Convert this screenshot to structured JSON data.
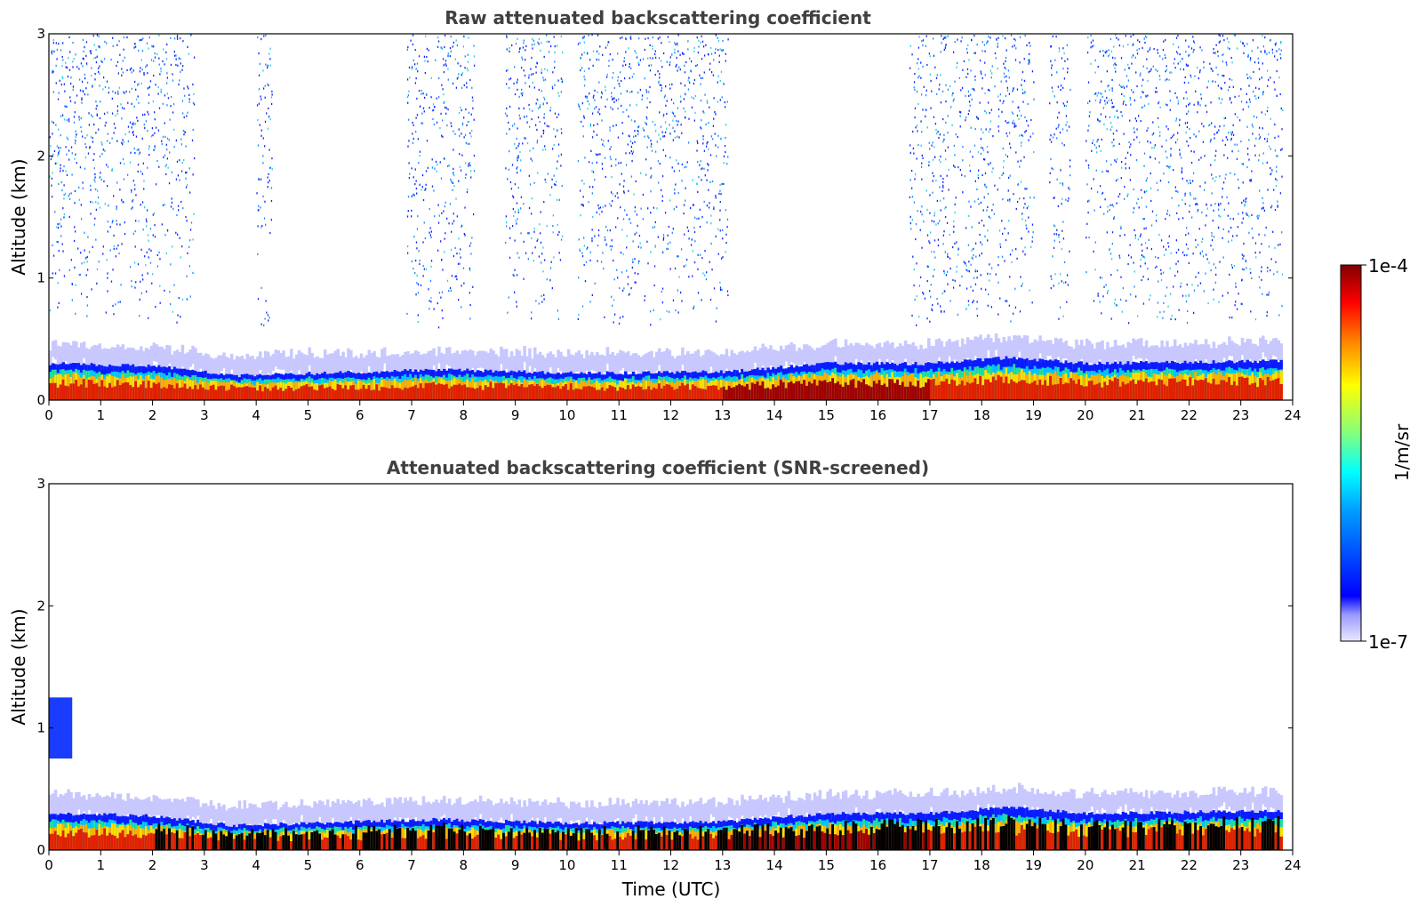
{
  "chart_data": [
    {
      "type": "heatmap",
      "title": "Raw attenuated backscattering coefficient",
      "xlabel": "",
      "ylabel": "Altitude (km)",
      "xlim": [
        0,
        24
      ],
      "ylim": [
        0,
        3
      ],
      "xticks": [
        "0",
        "1",
        "2",
        "3",
        "4",
        "5",
        "6",
        "7",
        "8",
        "9",
        "10",
        "11",
        "12",
        "13",
        "14",
        "15",
        "16",
        "17",
        "18",
        "19",
        "20",
        "21",
        "22",
        "23",
        "24"
      ],
      "yticks": [
        "0",
        "1",
        "2",
        "3"
      ],
      "variant": "raw",
      "boundary_layer_top_km": [
        {
          "t": 0,
          "h": 0.3
        },
        {
          "t": 2,
          "h": 0.28
        },
        {
          "t": 3.5,
          "h": 0.2
        },
        {
          "t": 7.5,
          "h": 0.25
        },
        {
          "t": 10,
          "h": 0.22
        },
        {
          "t": 13,
          "h": 0.23
        },
        {
          "t": 15,
          "h": 0.3
        },
        {
          "t": 17,
          "h": 0.3
        },
        {
          "t": 18.5,
          "h": 0.35
        },
        {
          "t": 20,
          "h": 0.3
        },
        {
          "t": 23.8,
          "h": 0.32
        }
      ],
      "noise_bands_utc": [
        [
          0,
          2.8
        ],
        [
          4,
          4.3
        ],
        [
          6.9,
          8.2
        ],
        [
          8.8,
          9.9
        ],
        [
          10.2,
          11.5
        ],
        [
          11.5,
          13.1
        ],
        [
          16.6,
          19
        ],
        [
          19.3,
          19.7
        ],
        [
          20,
          21.3
        ],
        [
          21.3,
          22.5
        ],
        [
          22.5,
          23.1
        ],
        [
          23.1,
          23.8
        ]
      ]
    },
    {
      "type": "heatmap",
      "title": "Attenuated backscattering coefficient (SNR-screened)",
      "xlabel": "Time (UTC)",
      "ylabel": "Altitude (km)",
      "xlim": [
        0,
        24
      ],
      "ylim": [
        0,
        3
      ],
      "xticks": [
        "0",
        "1",
        "2",
        "3",
        "4",
        "5",
        "6",
        "7",
        "8",
        "9",
        "10",
        "11",
        "12",
        "13",
        "14",
        "15",
        "16",
        "17",
        "18",
        "19",
        "20",
        "21",
        "22",
        "23",
        "24"
      ],
      "yticks": [
        "0",
        "1",
        "2",
        "3"
      ],
      "variant": "screened",
      "cloud_patch": {
        "t_start": 0,
        "t_end": 0.45,
        "h_bottom": 0.75,
        "h_top": 1.25
      }
    }
  ],
  "colorbar": {
    "label": "1/m/sr",
    "max_label": "1e-4",
    "min_label": "1e-7",
    "colormap": "jet"
  }
}
